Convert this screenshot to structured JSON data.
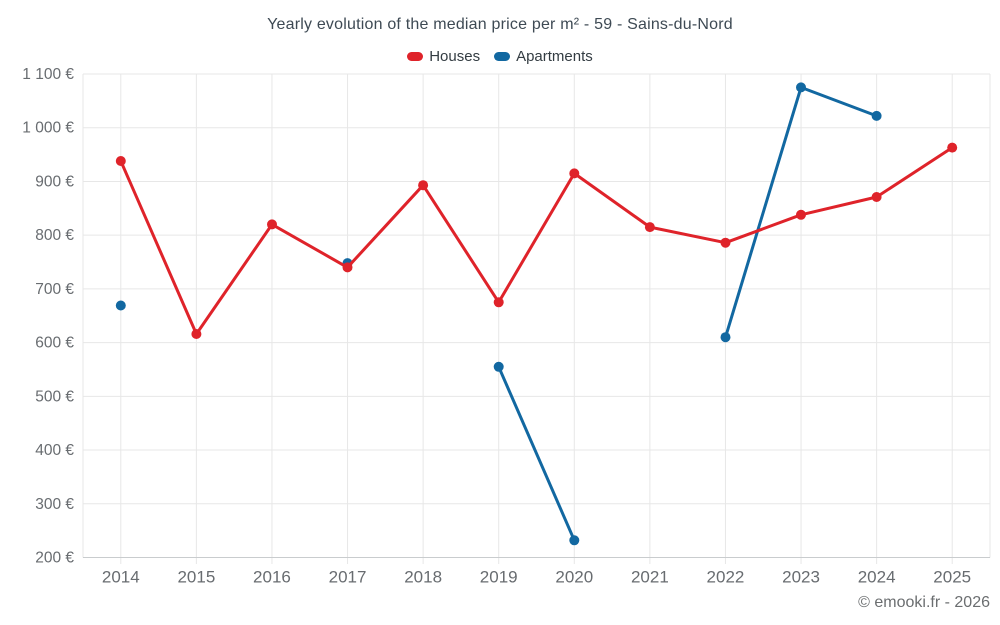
{
  "page": {
    "footer": "© emooki.fr - 2026"
  },
  "chart_data": {
    "type": "line",
    "title": "Yearly evolution of the median price per m² - 59 - Sains-du-Nord",
    "categories": [
      "2014",
      "2015",
      "2016",
      "2017",
      "2018",
      "2019",
      "2020",
      "2021",
      "2022",
      "2023",
      "2024",
      "2025"
    ],
    "series": [
      {
        "name": "Houses",
        "color": "#df232a",
        "values": [
          938,
          616,
          820,
          740,
          893,
          675,
          915,
          815,
          786,
          838,
          871,
          963
        ]
      },
      {
        "name": "Apartments",
        "color": "#1268a1",
        "values": [
          669,
          null,
          null,
          748,
          null,
          555,
          232,
          null,
          610,
          1075,
          1022,
          null
        ]
      }
    ],
    "xlabel": "",
    "ylabel": "",
    "ylim": [
      200,
      1100
    ],
    "ytick_values": [
      200,
      300,
      400,
      500,
      600,
      700,
      800,
      900,
      1000,
      1100
    ],
    "ytick_labels": [
      "200 €",
      "300 €",
      "400 €",
      "500 €",
      "600 €",
      "700 €",
      "800 €",
      "900 €",
      "1 000 €",
      "1 100 €"
    ],
    "grid": true,
    "legend_position": "top",
    "marker_radius": 5,
    "line_width": 3
  },
  "theme": {
    "background": "#ffffff",
    "title_color": "#3e4a54",
    "legend_text_color": "#333c42",
    "axis_label_color": "#686c70",
    "gridline_color": "#e7e7e7",
    "axis_line_color": "#c9ccce",
    "footer_color": "#6b6e70"
  }
}
